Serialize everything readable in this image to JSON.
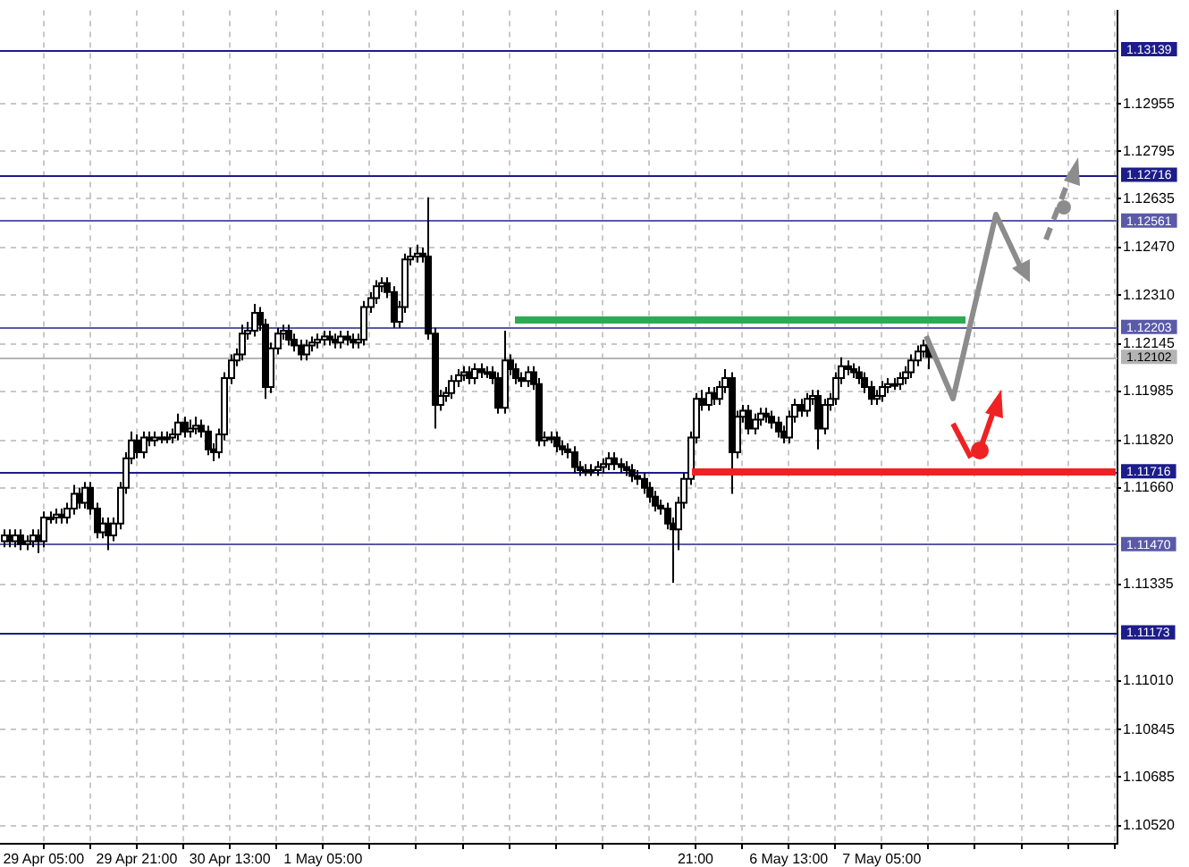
{
  "chart_data": {
    "type": "candlestick",
    "categories": [
      null,
      null,
      null,
      null,
      null,
      null,
      null,
      "29 Apr 05:00",
      null,
      null,
      null,
      null,
      null,
      null,
      null,
      null,
      null,
      null,
      null,
      null,
      null,
      null,
      null,
      "29 Apr 21:00",
      null,
      null,
      null,
      null,
      null,
      null,
      null,
      null,
      null,
      null,
      null,
      null,
      null,
      null,
      null,
      "30 Apr 13:00",
      null,
      null,
      null,
      null,
      null,
      null,
      null,
      null,
      null,
      null,
      null,
      null,
      null,
      null,
      null,
      "1 May 05:00",
      null,
      null,
      null,
      null,
      null,
      null,
      null,
      null,
      null,
      null,
      null,
      null,
      null,
      null,
      null,
      null,
      null,
      null,
      null,
      null,
      null,
      null,
      null,
      null,
      null,
      null,
      null,
      null,
      null,
      null,
      null,
      null,
      null,
      null,
      null,
      null,
      null,
      null,
      null,
      null,
      null,
      null,
      null,
      null,
      null,
      null,
      null,
      null,
      null,
      null,
      null,
      null,
      null,
      null,
      null,
      null,
      null,
      null,
      null,
      null,
      null,
      null,
      null,
      "21:00",
      null,
      null,
      null,
      null,
      null,
      null,
      null,
      null,
      null,
      null,
      null,
      null,
      null,
      null,
      null,
      "6 May 13:00",
      null,
      null,
      null,
      null,
      null,
      null,
      null,
      null,
      null,
      null,
      null,
      null,
      null,
      null,
      null,
      "7 May 05:00",
      null,
      null,
      null,
      null,
      null,
      null,
      null,
      null,
      null,
      null,
      null,
      null,
      null,
      null,
      null,
      null,
      null,
      null,
      null,
      null,
      null,
      null,
      null,
      null,
      null,
      null,
      null,
      null,
      null,
      null,
      null,
      null,
      null,
      null,
      null,
      null,
      null,
      null,
      null,
      null
    ],
    "ohlc": [
      [
        1.1148,
        1.1152,
        1.1146,
        1.115
      ],
      [
        1.115,
        1.1152,
        1.1146,
        1.1148
      ],
      [
        1.1148,
        1.1152,
        1.1146,
        1.115
      ],
      [
        1.115,
        1.1152,
        1.1145,
        1.1147
      ],
      [
        1.1147,
        1.115,
        1.1145,
        1.1148
      ],
      [
        1.1148,
        1.1152,
        1.1146,
        1.115
      ],
      [
        1.115,
        1.1152,
        1.1144,
        1.1148
      ],
      [
        1.1148,
        1.1158,
        1.1146,
        1.1156
      ],
      [
        1.1156,
        1.1158,
        1.1154,
        1.1156
      ],
      [
        1.1156,
        1.1159,
        1.1154,
        1.1157
      ],
      [
        1.1157,
        1.1159,
        1.1154,
        1.1156
      ],
      [
        1.1156,
        1.1161,
        1.1154,
        1.1159
      ],
      [
        1.1159,
        1.1167,
        1.1157,
        1.1164
      ],
      [
        1.1164,
        1.1166,
        1.1159,
        1.1161
      ],
      [
        1.1161,
        1.1168,
        1.1159,
        1.1166
      ],
      [
        1.1166,
        1.1168,
        1.1157,
        1.1159
      ],
      [
        1.1159,
        1.1161,
        1.1149,
        1.1151
      ],
      [
        1.1151,
        1.1156,
        1.1149,
        1.1154
      ],
      [
        1.1154,
        1.1156,
        1.1145,
        1.115
      ],
      [
        1.115,
        1.1156,
        1.1148,
        1.1154
      ],
      [
        1.1154,
        1.1168,
        1.1152,
        1.1166
      ],
      [
        1.1166,
        1.1178,
        1.1164,
        1.1176
      ],
      [
        1.1176,
        1.1185,
        1.1174,
        1.1182
      ],
      [
        1.1182,
        1.1184,
        1.1176,
        1.1178
      ],
      [
        1.1178,
        1.1185,
        1.1176,
        1.1183
      ],
      [
        1.1183,
        1.1185,
        1.118,
        1.1182
      ],
      [
        1.1182,
        1.1185,
        1.118,
        1.1183
      ],
      [
        1.1183,
        1.1185,
        1.1181,
        1.1183
      ],
      [
        1.1183,
        1.1185,
        1.1181,
        1.1183
      ],
      [
        1.1183,
        1.1186,
        1.1181,
        1.1184
      ],
      [
        1.1184,
        1.1191,
        1.1182,
        1.1188
      ],
      [
        1.1188,
        1.119,
        1.1183,
        1.1185
      ],
      [
        1.1185,
        1.1189,
        1.1183,
        1.1186
      ],
      [
        1.1186,
        1.119,
        1.1184,
        1.1187
      ],
      [
        1.1187,
        1.1189,
        1.1183,
        1.1185
      ],
      [
        1.1185,
        1.1187,
        1.1177,
        1.1179
      ],
      [
        1.1179,
        1.1181,
        1.1175,
        1.1178
      ],
      [
        1.1178,
        1.1186,
        1.1176,
        1.1184
      ],
      [
        1.1184,
        1.1205,
        1.1182,
        1.1203
      ],
      [
        1.1203,
        1.1211,
        1.1201,
        1.1209
      ],
      [
        1.1209,
        1.1213,
        1.1207,
        1.1211
      ],
      [
        1.1211,
        1.1221,
        1.1209,
        1.1218
      ],
      [
        1.1218,
        1.1222,
        1.1216,
        1.1219
      ],
      [
        1.1219,
        1.1228,
        1.1217,
        1.1225
      ],
      [
        1.1225,
        1.1227,
        1.1219,
        1.1221
      ],
      [
        1.1221,
        1.1223,
        1.1196,
        1.12
      ],
      [
        1.12,
        1.1215,
        1.1198,
        1.1213
      ],
      [
        1.1213,
        1.122,
        1.1211,
        1.1218
      ],
      [
        1.1218,
        1.1221,
        1.1216,
        1.1219
      ],
      [
        1.1219,
        1.1221,
        1.1214,
        1.1216
      ],
      [
        1.1216,
        1.1218,
        1.1212,
        1.1214
      ],
      [
        1.1214,
        1.1216,
        1.1209,
        1.1211
      ],
      [
        1.1211,
        1.1216,
        1.1209,
        1.1214
      ],
      [
        1.1214,
        1.1217,
        1.1212,
        1.1215
      ],
      [
        1.1215,
        1.1218,
        1.1213,
        1.1216
      ],
      [
        1.1216,
        1.1219,
        1.1214,
        1.1217
      ],
      [
        1.1217,
        1.1219,
        1.1214,
        1.1216
      ],
      [
        1.1216,
        1.1218,
        1.1213,
        1.1215
      ],
      [
        1.1215,
        1.1219,
        1.1213,
        1.1217
      ],
      [
        1.1217,
        1.1219,
        1.1214,
        1.1216
      ],
      [
        1.1216,
        1.1218,
        1.1213,
        1.1215
      ],
      [
        1.1215,
        1.1218,
        1.1213,
        1.1216
      ],
      [
        1.1216,
        1.1229,
        1.1214,
        1.1227
      ],
      [
        1.1227,
        1.1232,
        1.1225,
        1.123
      ],
      [
        1.123,
        1.1236,
        1.1228,
        1.1234
      ],
      [
        1.1234,
        1.1237,
        1.1232,
        1.1235
      ],
      [
        1.1235,
        1.1237,
        1.123,
        1.1232
      ],
      [
        1.1232,
        1.1234,
        1.122,
        1.1222
      ],
      [
        1.1222,
        1.1229,
        1.122,
        1.1227
      ],
      [
        1.1227,
        1.1245,
        1.1225,
        1.1243
      ],
      [
        1.1243,
        1.1247,
        1.1241,
        1.1244
      ],
      [
        1.1244,
        1.1248,
        1.1242,
        1.1245
      ],
      [
        1.1245,
        1.1247,
        1.1242,
        1.1244
      ],
      [
        1.1244,
        1.1264,
        1.1216,
        1.1218
      ],
      [
        1.1218,
        1.122,
        1.1186,
        1.1194
      ],
      [
        1.1194,
        1.1199,
        1.1192,
        1.1197
      ],
      [
        1.1197,
        1.12,
        1.1195,
        1.1198
      ],
      [
        1.1198,
        1.1204,
        1.1196,
        1.1202
      ],
      [
        1.1202,
        1.1206,
        1.12,
        1.1204
      ],
      [
        1.1204,
        1.1207,
        1.1202,
        1.1205
      ],
      [
        1.1205,
        1.1207,
        1.1201,
        1.1203
      ],
      [
        1.1203,
        1.1208,
        1.1201,
        1.1206
      ],
      [
        1.1206,
        1.1208,
        1.1203,
        1.1205
      ],
      [
        1.1205,
        1.1207,
        1.1203,
        1.1205
      ],
      [
        1.1205,
        1.1207,
        1.1201,
        1.1203
      ],
      [
        1.1203,
        1.1205,
        1.1191,
        1.1193
      ],
      [
        1.1193,
        1.1219,
        1.1191,
        1.1209
      ],
      [
        1.1209,
        1.1211,
        1.1204,
        1.1206
      ],
      [
        1.1206,
        1.1208,
        1.1201,
        1.1203
      ],
      [
        1.1203,
        1.1205,
        1.12,
        1.1202
      ],
      [
        1.1202,
        1.1207,
        1.12,
        1.1205
      ],
      [
        1.1205,
        1.1207,
        1.1199,
        1.1201
      ],
      [
        1.1201,
        1.1203,
        1.118,
        1.1182
      ],
      [
        1.1182,
        1.1185,
        1.118,
        1.1183
      ],
      [
        1.1183,
        1.1185,
        1.1181,
        1.1183
      ],
      [
        1.1183,
        1.1185,
        1.1178,
        1.118
      ],
      [
        1.118,
        1.1182,
        1.1177,
        1.1179
      ],
      [
        1.1179,
        1.1181,
        1.1176,
        1.1178
      ],
      [
        1.1178,
        1.118,
        1.1171,
        1.1173
      ],
      [
        1.1173,
        1.1175,
        1.117,
        1.1172
      ],
      [
        1.1172,
        1.1174,
        1.117,
        1.1172
      ],
      [
        1.1172,
        1.1174,
        1.117,
        1.1172
      ],
      [
        1.1172,
        1.1175,
        1.117,
        1.1173
      ],
      [
        1.1173,
        1.1176,
        1.1171,
        1.1174
      ],
      [
        1.1174,
        1.1178,
        1.1172,
        1.1176
      ],
      [
        1.1176,
        1.1178,
        1.1172,
        1.1174
      ],
      [
        1.1174,
        1.1176,
        1.1171,
        1.1173
      ],
      [
        1.1173,
        1.1175,
        1.117,
        1.1172
      ],
      [
        1.1172,
        1.1174,
        1.1168,
        1.117
      ],
      [
        1.117,
        1.1172,
        1.1167,
        1.1169
      ],
      [
        1.1169,
        1.1171,
        1.1164,
        1.1166
      ],
      [
        1.1166,
        1.1168,
        1.1161,
        1.1163
      ],
      [
        1.1163,
        1.1165,
        1.1158,
        1.116
      ],
      [
        1.116,
        1.1162,
        1.1157,
        1.1159
      ],
      [
        1.1159,
        1.1161,
        1.1152,
        1.1154
      ],
      [
        1.1154,
        1.1156,
        1.1134,
        1.1152
      ],
      [
        1.1152,
        1.1163,
        1.1145,
        1.1161
      ],
      [
        1.1161,
        1.1171,
        1.1159,
        1.1169
      ],
      [
        1.1169,
        1.1185,
        1.1167,
        1.1183
      ],
      [
        1.1183,
        1.1198,
        1.1181,
        1.1196
      ],
      [
        1.1196,
        1.1199,
        1.1192,
        1.1194
      ],
      [
        1.1194,
        1.12,
        1.1192,
        1.1198
      ],
      [
        1.1198,
        1.12,
        1.1194,
        1.1196
      ],
      [
        1.1196,
        1.1202,
        1.1194,
        1.12
      ],
      [
        1.12,
        1.1206,
        1.1198,
        1.1203
      ],
      [
        1.1203,
        1.1205,
        1.1164,
        1.1178
      ],
      [
        1.1178,
        1.1192,
        1.1176,
        1.119
      ],
      [
        1.119,
        1.1194,
        1.1188,
        1.1192
      ],
      [
        1.1192,
        1.1194,
        1.1184,
        1.1186
      ],
      [
        1.1186,
        1.1191,
        1.1184,
        1.1189
      ],
      [
        1.1189,
        1.1193,
        1.1187,
        1.1191
      ],
      [
        1.1191,
        1.1193,
        1.1188,
        1.119
      ],
      [
        1.119,
        1.1192,
        1.1186,
        1.1188
      ],
      [
        1.1188,
        1.119,
        1.1183,
        1.1185
      ],
      [
        1.1185,
        1.1187,
        1.1181,
        1.1183
      ],
      [
        1.1183,
        1.1192,
        1.1181,
        1.119
      ],
      [
        1.119,
        1.1196,
        1.1188,
        1.1194
      ],
      [
        1.1194,
        1.1196,
        1.119,
        1.1192
      ],
      [
        1.1192,
        1.1198,
        1.119,
        1.1196
      ],
      [
        1.1196,
        1.1199,
        1.1194,
        1.1197
      ],
      [
        1.1197,
        1.1199,
        1.1179,
        1.1186
      ],
      [
        1.1186,
        1.1196,
        1.1184,
        1.1194
      ],
      [
        1.1194,
        1.1198,
        1.1192,
        1.1196
      ],
      [
        1.1196,
        1.1205,
        1.1194,
        1.1203
      ],
      [
        1.1203,
        1.121,
        1.1201,
        1.1207
      ],
      [
        1.1207,
        1.1209,
        1.1204,
        1.1206
      ],
      [
        1.1206,
        1.1208,
        1.1203,
        1.1205
      ],
      [
        1.1205,
        1.1207,
        1.1201,
        1.1203
      ],
      [
        1.1203,
        1.1205,
        1.1198,
        1.12
      ],
      [
        1.12,
        1.1202,
        1.1194,
        1.1196
      ],
      [
        1.1196,
        1.1199,
        1.1194,
        1.1197
      ],
      [
        1.1197,
        1.1202,
        1.1195,
        1.12
      ],
      [
        1.12,
        1.1203,
        1.1198,
        1.1201
      ],
      [
        1.1201,
        1.1203,
        1.1199,
        1.1201
      ],
      [
        1.1201,
        1.1205,
        1.1199,
        1.1203
      ],
      [
        1.1203,
        1.1207,
        1.1201,
        1.1205
      ],
      [
        1.1205,
        1.1211,
        1.1203,
        1.1209
      ],
      [
        1.1209,
        1.1214,
        1.1207,
        1.1212
      ],
      [
        1.1212,
        1.1216,
        1.121,
        1.1214
      ],
      [
        1.1214,
        1.1216,
        1.1206,
        1.12102
      ],
      null,
      null,
      null,
      null,
      null,
      null,
      null,
      null,
      null,
      null,
      null,
      null,
      null,
      null,
      null,
      null,
      null,
      null,
      null,
      null,
      null,
      null,
      null,
      null,
      null,
      null,
      null,
      null,
      null,
      null,
      null,
      null
    ],
    "ylim": [
      1.1046,
      1.1327
    ],
    "yticks": [
      1.12955,
      1.12795,
      1.12635,
      {
        "value": 1.1247,
        "label": "1.12470"
      },
      {
        "value": 1.1231,
        "label": "1.12310"
      },
      1.12145,
      1.11985,
      {
        "value": 1.1182,
        "label": "1.11820"
      },
      {
        "value": 1.1166,
        "label": "1.11660"
      },
      1.11335,
      {
        "value": 1.1101,
        "label": "1.11010"
      },
      1.10845,
      1.10685,
      {
        "value": 1.1052,
        "label": "1.10520"
      }
    ],
    "grid": true,
    "ref_lines": [
      {
        "axis": "y",
        "value": 1.13139,
        "label": "1.13139",
        "color": "#1c1c8a"
      },
      {
        "axis": "y",
        "value": 1.12716,
        "label": "1.12716",
        "color": "#1c1c8a"
      },
      {
        "axis": "y",
        "value": 1.12561,
        "label": "1.12561",
        "color": "#5a5aa8"
      },
      {
        "axis": "y",
        "value": 1.12203,
        "label": "1.12203",
        "color": "#5a5aa8"
      },
      {
        "axis": "y",
        "value": 1.12102,
        "label": "1.12102",
        "color": "#b4b4b4"
      },
      {
        "axis": "y",
        "value": 1.11716,
        "label": "1.11716",
        "color": "#1c1c8a"
      },
      {
        "axis": "y",
        "value": 1.1147,
        "label": "1.11470",
        "color": "#5a5aa8"
      },
      {
        "axis": "y",
        "value": 1.11173,
        "label": "1.11173",
        "color": "#1c1c8a"
      }
    ]
  }
}
